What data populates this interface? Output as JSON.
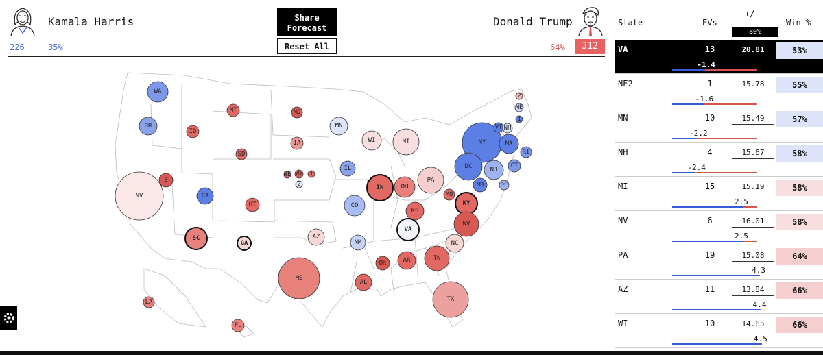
{
  "header": {
    "harris_name": "Kamala Harris",
    "trump_name": "Donald Trump",
    "harris_evs": "226",
    "harris_pct": "35%",
    "trump_pct": "64%",
    "trump_evs": "312",
    "share_label_line1": "Share",
    "share_label_line2": "Forecast",
    "reset_label": "Reset All"
  },
  "colors": {
    "dem": "#4a6fe0",
    "rep": "#e8635f"
  },
  "map": {
    "states": [
      {
        "abbr": "WA",
        "fill": "#7d97ea"
      },
      {
        "abbr": "OR",
        "fill": "#8aa2ec"
      },
      {
        "abbr": "ID",
        "fill": "#e26863"
      },
      {
        "abbr": "MT",
        "fill": "#e26863"
      },
      {
        "abbr": "ND",
        "fill": "#d85854"
      },
      {
        "abbr": "MN",
        "fill": "#dde4fa"
      },
      {
        "abbr": "WI",
        "fill": "#f8dede"
      },
      {
        "abbr": "MI",
        "fill": "#f8dede"
      },
      {
        "abbr": "NY",
        "fill": "#5c7fe6"
      },
      {
        "abbr": "VT",
        "fill": "#5c7fe6"
      },
      {
        "abbr": "NH",
        "fill": "#dde4fa"
      },
      {
        "abbr": "ME",
        "fill": "#c6d2f6"
      },
      {
        "abbr": "2",
        "fill": "#f0b5b3"
      },
      {
        "abbr": "1",
        "fill": "#5c7fe6"
      },
      {
        "abbr": "MA",
        "fill": "#5c7fe6"
      },
      {
        "abbr": "RI",
        "fill": "#7d97ea"
      },
      {
        "abbr": "CT",
        "fill": "#7d97ea"
      },
      {
        "abbr": "NJ",
        "fill": "#9fb3f0"
      },
      {
        "abbr": "DE",
        "fill": "#9fb3f0"
      },
      {
        "abbr": "MD",
        "fill": "#5c7fe6"
      },
      {
        "abbr": "DC",
        "fill": "#5c7fe6"
      },
      {
        "abbr": "PA",
        "fill": "#f5cfcf"
      },
      {
        "abbr": "OH",
        "fill": "#e8807c"
      },
      {
        "abbr": "IN",
        "fill": "#e26863"
      },
      {
        "abbr": "IL",
        "fill": "#8aa2ec"
      },
      {
        "abbr": "IA",
        "fill": "#ec9a97"
      },
      {
        "abbr": "SD",
        "fill": "#e26863"
      },
      {
        "abbr": "WY",
        "fill": "#d85854"
      },
      {
        "abbr": "NE",
        "fill": "#e26863"
      },
      {
        "abbr": "2",
        "fill": "#dde4fa"
      },
      {
        "abbr": "1",
        "fill": "#e26863"
      },
      {
        "abbr": "3",
        "fill": "#d85854"
      },
      {
        "abbr": "NV",
        "fill": "#fbe9e9"
      },
      {
        "abbr": "CA",
        "fill": "#5c7fe6"
      },
      {
        "abbr": "UT",
        "fill": "#e26863"
      },
      {
        "abbr": "CO",
        "fill": "#a9bcf2"
      },
      {
        "abbr": "KS",
        "fill": "#e26863"
      },
      {
        "abbr": "MO",
        "fill": "#e26863"
      },
      {
        "abbr": "KY",
        "fill": "#e26863"
      },
      {
        "abbr": "WV",
        "fill": "#d85854"
      },
      {
        "abbr": "VA",
        "fill": "#f2f4f8"
      },
      {
        "abbr": "NC",
        "fill": "#f7d6d6"
      },
      {
        "abbr": "TN",
        "fill": "#e26863"
      },
      {
        "abbr": "SC",
        "fill": "#e8807c"
      },
      {
        "abbr": "GA",
        "fill": "#f7d6d6"
      },
      {
        "abbr": "AZ",
        "fill": "#f7d6d6"
      },
      {
        "abbr": "NM",
        "fill": "#c6d2f6"
      },
      {
        "abbr": "OK",
        "fill": "#d85854"
      },
      {
        "abbr": "AR",
        "fill": "#e26863"
      },
      {
        "abbr": "MS",
        "fill": "#e8807c"
      },
      {
        "abbr": "AL",
        "fill": "#e26863"
      },
      {
        "abbr": "TX",
        "fill": "#eca19e"
      },
      {
        "abbr": "LA",
        "fill": "#e8807c"
      },
      {
        "abbr": "FL",
        "fill": "#e8807c"
      },
      {
        "abbr": "AK",
        "fill": "#e8807c"
      },
      {
        "abbr": "HI",
        "fill": "#5c7fe6"
      }
    ]
  },
  "table": {
    "col_state": "State",
    "col_evs": "EVs",
    "col_margin": "+/-",
    "range_label": "80%",
    "col_win": "Win %",
    "rows": [
      {
        "state": "VA",
        "evs": "13",
        "margin": "20.81",
        "shift": "-1.4",
        "win": "53%",
        "win_bg": "#dde4fa"
      },
      {
        "state": "NE2",
        "evs": "1",
        "margin": "15.78",
        "shift": "-1.6",
        "win": "55%",
        "win_bg": "#dde4fa"
      },
      {
        "state": "MN",
        "evs": "10",
        "margin": "15.49",
        "shift": "-2.2",
        "win": "57%",
        "win_bg": "#dde4fa"
      },
      {
        "state": "NH",
        "evs": "4",
        "margin": "15.67",
        "shift": "-2.4",
        "win": "58%",
        "win_bg": "#dde4fa"
      },
      {
        "state": "MI",
        "evs": "15",
        "margin": "15.19",
        "shift": "2.5",
        "win": "58%",
        "win_bg": "#f8dede"
      },
      {
        "state": "NV",
        "evs": "6",
        "margin": "16.01",
        "shift": "2.5",
        "win": "58%",
        "win_bg": "#f8dede"
      },
      {
        "state": "PA",
        "evs": "19",
        "margin": "15.08",
        "shift": "4.3",
        "win": "64%",
        "win_bg": "#f5cfcf"
      },
      {
        "state": "AZ",
        "evs": "11",
        "margin": "13.84",
        "shift": "4.4",
        "win": "66%",
        "win_bg": "#f5cfcf"
      },
      {
        "state": "WI",
        "evs": "10",
        "margin": "14.65",
        "shift": "4.5",
        "win": "66%",
        "win_bg": "#f5cfcf"
      }
    ]
  }
}
